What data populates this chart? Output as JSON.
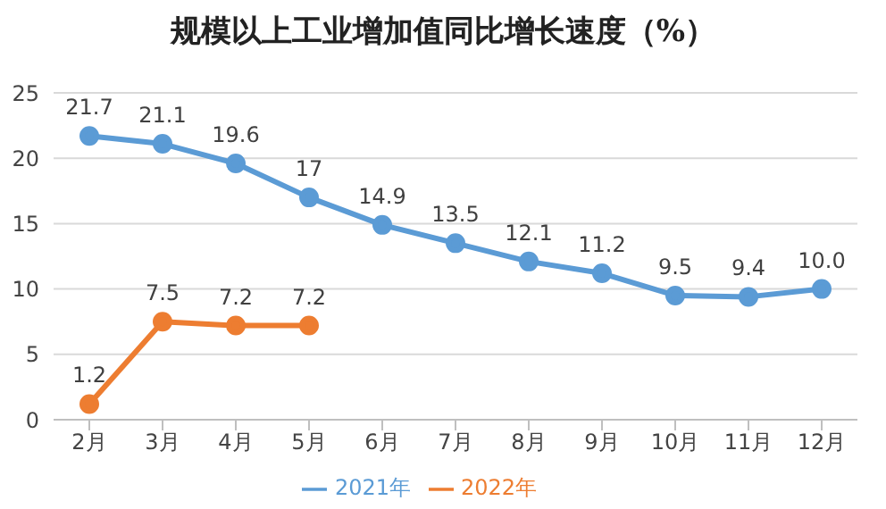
{
  "chart_data": {
    "type": "line",
    "title": "规模以上工业增加值同比增长速度（%）",
    "categories": [
      "2月",
      "3月",
      "4月",
      "5月",
      "6月",
      "7月",
      "8月",
      "9月",
      "10月",
      "11月",
      "12月"
    ],
    "series": [
      {
        "name": "2021年",
        "color": "#5b9bd5",
        "values": [
          21.7,
          21.1,
          19.6,
          17,
          14.9,
          13.5,
          12.1,
          11.2,
          9.5,
          9.4,
          10.0
        ],
        "value_labels": [
          "21.7",
          "21.1",
          "19.6",
          "17",
          "14.9",
          "13.5",
          "12.1",
          "11.2",
          "9.5",
          "9.4",
          "10.0"
        ]
      },
      {
        "name": "2022年",
        "color": "#ed7d31",
        "values": [
          1.2,
          7.5,
          7.2,
          7.2,
          null,
          null,
          null,
          null,
          null,
          null,
          null
        ],
        "value_labels": [
          "1.2",
          "7.5",
          "7.2",
          "7.2",
          null,
          null,
          null,
          null,
          null,
          null,
          null
        ]
      }
    ],
    "ylim": [
      0,
      25
    ],
    "yticks": [
      0,
      5,
      10,
      15,
      20,
      25
    ],
    "grid": "y",
    "legend": "bottom",
    "marker": "circle",
    "line_style": "solid"
  }
}
